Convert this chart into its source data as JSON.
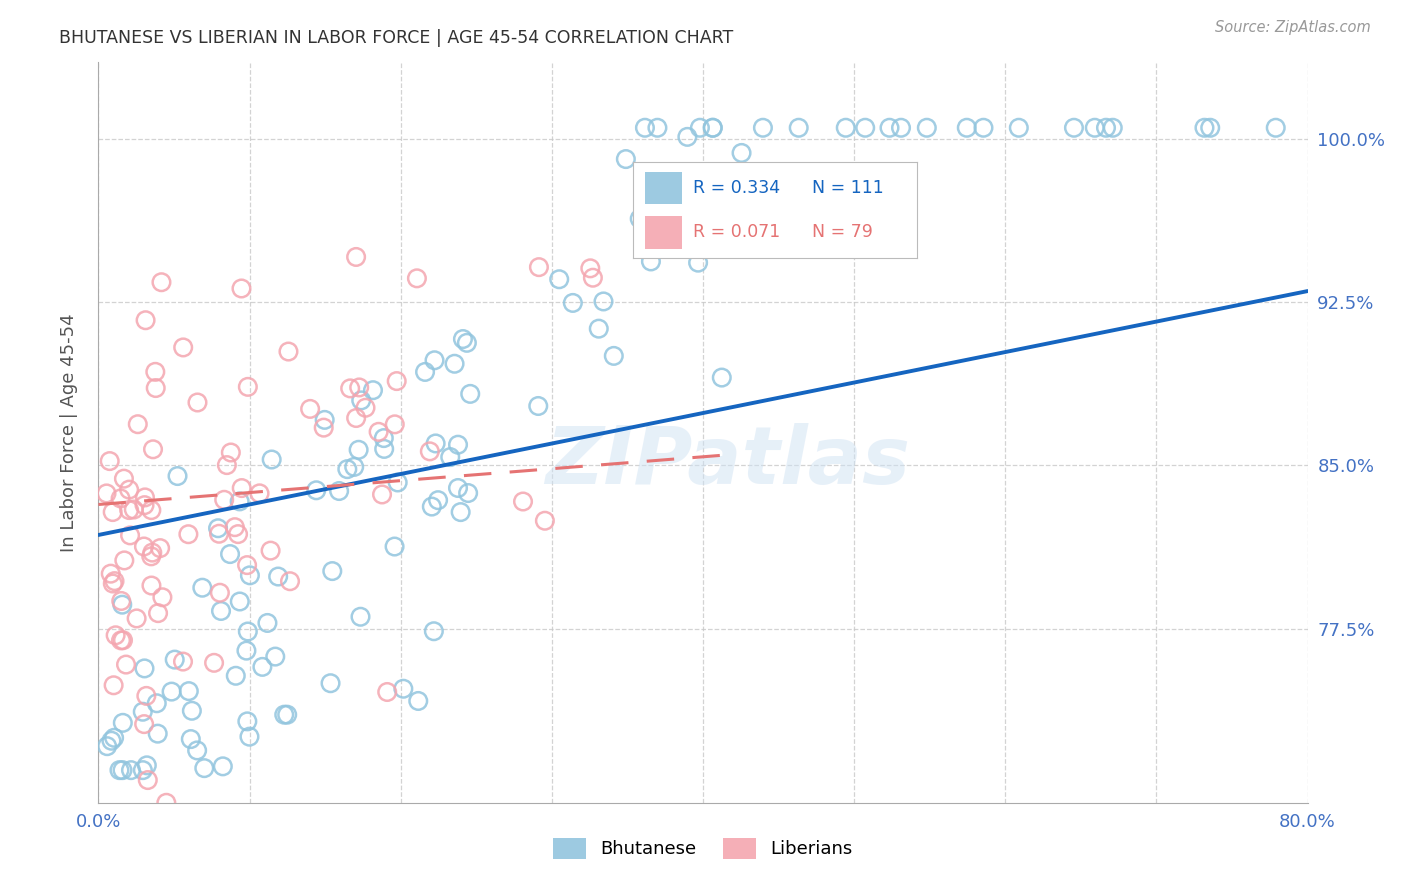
{
  "title": "BHUTANESE VS LIBERIAN IN LABOR FORCE | AGE 45-54 CORRELATION CHART",
  "source": "Source: ZipAtlas.com",
  "ylabel": "In Labor Force | Age 45-54",
  "watermark": "ZIPatlas",
  "xlim": [
    0.0,
    0.8
  ],
  "ylim": [
    0.695,
    1.035
  ],
  "xticks": [
    0.0,
    0.1,
    0.2,
    0.3,
    0.4,
    0.5,
    0.6,
    0.7,
    0.8
  ],
  "xticklabels": [
    "0.0%",
    "",
    "",
    "",
    "",
    "",
    "",
    "",
    "80.0%"
  ],
  "yticks": [
    0.775,
    0.85,
    0.925,
    1.0
  ],
  "yticklabels": [
    "77.5%",
    "85.0%",
    "92.5%",
    "100.0%"
  ],
  "bhutanese_R": 0.334,
  "bhutanese_N": 111,
  "liberian_R": 0.071,
  "liberian_N": 79,
  "bhutanese_color": "#92c5de",
  "liberian_color": "#f4a6b0",
  "bhutanese_line_color": "#1565c0",
  "liberian_line_color": "#e57373",
  "grid_color": "#c8c8c8",
  "title_color": "#333333",
  "tick_color": "#4472c4",
  "background_color": "#ffffff",
  "blue_line_x0": 0.0,
  "blue_line_y0": 0.818,
  "blue_line_x1": 0.8,
  "blue_line_y1": 0.93,
  "pink_line_x0": 0.0,
  "pink_line_y0": 0.832,
  "pink_line_x1": 0.42,
  "pink_line_y1": 0.855
}
